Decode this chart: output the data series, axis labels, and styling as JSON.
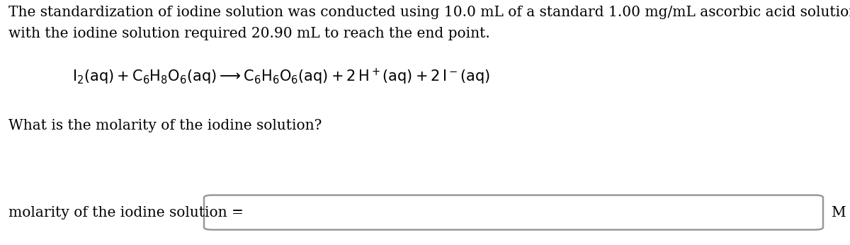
{
  "background_color": "#ffffff",
  "paragraph1": "The standardization of iodine solution was conducted using 10.0 mL of a standard 1.00 mg/mL ascorbic acid solution. Titration",
  "paragraph2": "with the iodine solution required 20.90 mL to reach the end point.",
  "equation": "$\\mathrm{I_2(aq) + C_6H_8O_6(aq) \\longrightarrow C_6H_6O_6(aq) + 2\\,H^+(aq) + 2\\,I^-(aq)}$",
  "question": "What is the molarity of the iodine solution?",
  "answer_label": "molarity of the iodine solution =",
  "answer_unit": "M",
  "text_color": "#000000",
  "box_edge_color": "#999999",
  "font_size_text": 14.5,
  "font_size_eq": 15.0,
  "font_size_label": 14.5,
  "fig_width": 12.0,
  "fig_height": 3.46
}
